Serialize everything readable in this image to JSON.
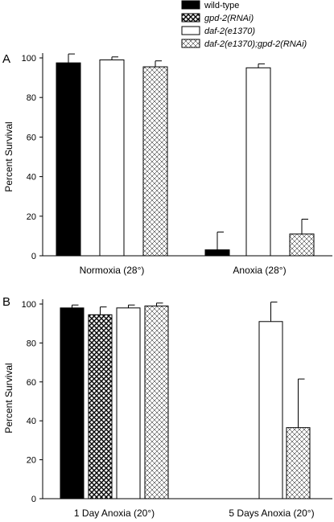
{
  "legend": [
    {
      "name": "wild-type",
      "italic": false,
      "pattern": "solid-black"
    },
    {
      "name": "gpd-2(RNAi)",
      "italic": true,
      "pattern": "dense-crosshatch"
    },
    {
      "name": "daf-2(e1370)",
      "italic": true,
      "pattern": "white"
    },
    {
      "name": "daf-2(e1370);gpd-2(RNAi)",
      "italic": true,
      "pattern": "light-crosshatch"
    }
  ],
  "colors": {
    "bar_edge": "#000000",
    "black_fill": "#000000",
    "white_fill": "#ffffff",
    "background": "#ffffff"
  },
  "chart_data": [
    {
      "panel": "A",
      "type": "bar",
      "ylabel": "Percent Survival",
      "ylim": [
        0,
        100
      ],
      "yticks": [
        0,
        20,
        40,
        60,
        80,
        100
      ],
      "categories": [
        "Normoxia (28°)",
        "Anoxia (28°)"
      ],
      "grid": false,
      "series": [
        {
          "name": "wild-type",
          "values": [
            97.5,
            3
          ],
          "errors": [
            4.5,
            9
          ]
        },
        {
          "name": "gpd-2(RNAi)",
          "values": [
            null,
            null
          ],
          "errors": [
            null,
            null
          ]
        },
        {
          "name": "daf-2(e1370)",
          "values": [
            99,
            95
          ],
          "errors": [
            1.5,
            2
          ]
        },
        {
          "name": "daf-2(e1370);gpd-2(RNAi)",
          "values": [
            95.5,
            11
          ],
          "errors": [
            3,
            7.5
          ]
        }
      ]
    },
    {
      "panel": "B",
      "type": "bar",
      "ylabel": "Percent Survival",
      "ylim": [
        0,
        100
      ],
      "yticks": [
        0,
        20,
        40,
        60,
        80,
        100
      ],
      "categories": [
        "1 Day Anoxia (20°)",
        "5 Days Anoxia (20°)"
      ],
      "grid": false,
      "series": [
        {
          "name": "wild-type",
          "values": [
            98,
            0
          ],
          "errors": [
            1.5,
            0
          ]
        },
        {
          "name": "gpd-2(RNAi)",
          "values": [
            94.5,
            0
          ],
          "errors": [
            4,
            0
          ]
        },
        {
          "name": "daf-2(e1370)",
          "values": [
            98,
            91
          ],
          "errors": [
            1.5,
            10
          ]
        },
        {
          "name": "daf-2(e1370);gpd-2(RNAi)",
          "values": [
            99,
            36.5
          ],
          "errors": [
            1.5,
            25
          ]
        }
      ]
    }
  ]
}
